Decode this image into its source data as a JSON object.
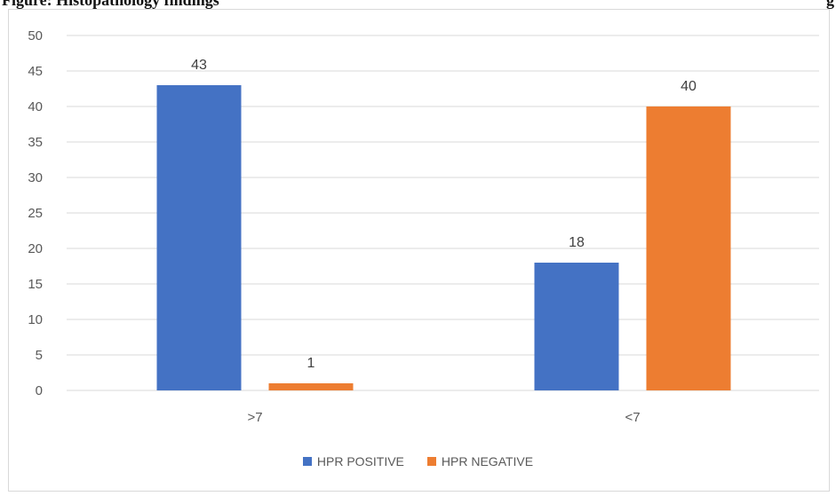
{
  "caption": {
    "text": "Figure: Histopathology findings",
    "right_text": "g"
  },
  "chart_data": {
    "type": "bar",
    "categories": [
      ">7",
      "<7"
    ],
    "series": [
      {
        "name": "HPR POSITIVE",
        "values": [
          43,
          18
        ],
        "color": "#4472c4"
      },
      {
        "name": "HPR NEGATIVE",
        "values": [
          1,
          40
        ],
        "color": "#ed7d31"
      }
    ],
    "ylim": [
      0,
      50
    ],
    "yticks": [
      0,
      5,
      10,
      15,
      20,
      25,
      30,
      35,
      40,
      45,
      50
    ],
    "grid": true,
    "legend": "bottom"
  }
}
